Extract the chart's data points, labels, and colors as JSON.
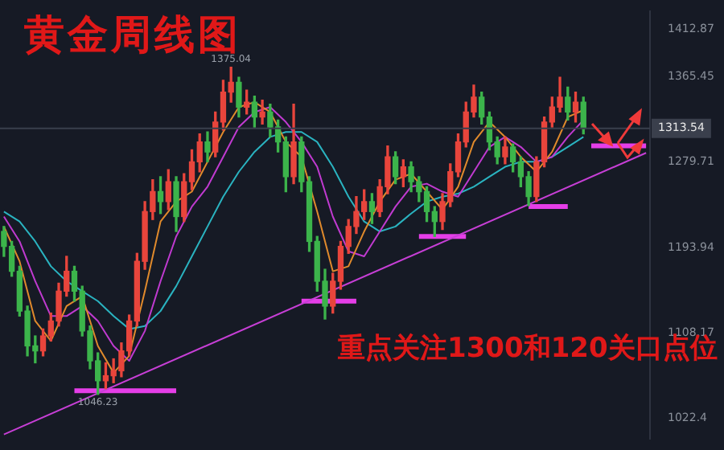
{
  "chart_data": {
    "type": "candlestick",
    "title": "黄金周线图",
    "annotations": [
      "重点关注1300和120关口点位",
      {
        "text": "1375.04",
        "y": 1375.04
      },
      {
        "text": "1046.23",
        "y": 1046.23
      }
    ],
    "categories": [
      null,
      null,
      null,
      null,
      null,
      null,
      null,
      null,
      null,
      null,
      null,
      null,
      null,
      null,
      null,
      null,
      null,
      null,
      null,
      null,
      null,
      null,
      null,
      null,
      null,
      null,
      null,
      null,
      null,
      null,
      null,
      null,
      null,
      null,
      null,
      null,
      null,
      null,
      null,
      null,
      null,
      null,
      null,
      null,
      null,
      null,
      null,
      null,
      null,
      null,
      null,
      null,
      null,
      null,
      null,
      null,
      null,
      null,
      null,
      null,
      null,
      null,
      null,
      null,
      null,
      null,
      null,
      null,
      null,
      null,
      null,
      null,
      null,
      null,
      null,
      null,
      null,
      null,
      null,
      null,
      null,
      null,
      null
    ],
    "ohlc": [
      [
        1210,
        1215,
        1185,
        1195
      ],
      [
        1195,
        1200,
        1165,
        1170
      ],
      [
        1170,
        1175,
        1125,
        1130
      ],
      [
        1130,
        1135,
        1085,
        1095
      ],
      [
        1095,
        1105,
        1078,
        1090
      ],
      [
        1090,
        1112,
        1085,
        1105
      ],
      [
        1105,
        1128,
        1100,
        1120
      ],
      [
        1120,
        1158,
        1115,
        1150
      ],
      [
        1150,
        1185,
        1145,
        1170
      ],
      [
        1170,
        1175,
        1140,
        1150
      ],
      [
        1150,
        1155,
        1105,
        1110
      ],
      [
        1110,
        1115,
        1072,
        1080
      ],
      [
        1080,
        1088,
        1046.23,
        1060
      ],
      [
        1060,
        1078,
        1052,
        1065
      ],
      [
        1065,
        1082,
        1058,
        1070
      ],
      [
        1070,
        1098,
        1064,
        1090
      ],
      [
        1090,
        1126,
        1085,
        1120
      ],
      [
        1120,
        1188,
        1115,
        1180
      ],
      [
        1180,
        1240,
        1172,
        1230
      ],
      [
        1230,
        1262,
        1222,
        1250
      ],
      [
        1250,
        1265,
        1228,
        1240
      ],
      [
        1240,
        1272,
        1232,
        1260
      ],
      [
        1260,
        1265,
        1210,
        1225
      ],
      [
        1225,
        1268,
        1220,
        1260
      ],
      [
        1260,
        1292,
        1252,
        1280
      ],
      [
        1280,
        1308,
        1270,
        1300
      ],
      [
        1300,
        1310,
        1280,
        1290
      ],
      [
        1290,
        1330,
        1285,
        1320
      ],
      [
        1320,
        1362,
        1312,
        1350
      ],
      [
        1350,
        1375.04,
        1340,
        1360
      ],
      [
        1360,
        1365,
        1325,
        1335
      ],
      [
        1335,
        1352,
        1328,
        1340
      ],
      [
        1340,
        1346,
        1315,
        1325
      ],
      [
        1325,
        1342,
        1318,
        1330
      ],
      [
        1330,
        1338,
        1305,
        1315
      ],
      [
        1315,
        1322,
        1290,
        1300
      ],
      [
        1300,
        1305,
        1250,
        1265
      ],
      [
        1265,
        1338,
        1258,
        1300
      ],
      [
        1300,
        1305,
        1250,
        1260
      ],
      [
        1260,
        1265,
        1190,
        1200
      ],
      [
        1200,
        1205,
        1150,
        1160
      ],
      [
        1160,
        1172,
        1122,
        1135
      ],
      [
        1135,
        1168,
        1128,
        1160
      ],
      [
        1160,
        1200,
        1152,
        1195
      ],
      [
        1195,
        1222,
        1188,
        1215
      ],
      [
        1215,
        1245,
        1208,
        1230
      ],
      [
        1230,
        1252,
        1222,
        1240
      ],
      [
        1240,
        1248,
        1218,
        1230
      ],
      [
        1230,
        1262,
        1225,
        1255
      ],
      [
        1255,
        1296,
        1248,
        1285
      ],
      [
        1285,
        1290,
        1258,
        1265
      ],
      [
        1265,
        1282,
        1255,
        1275
      ],
      [
        1275,
        1280,
        1250,
        1260
      ],
      [
        1260,
        1265,
        1240,
        1250
      ],
      [
        1250,
        1255,
        1220,
        1230
      ],
      [
        1230,
        1235,
        1205,
        1220
      ],
      [
        1220,
        1248,
        1212,
        1240
      ],
      [
        1240,
        1278,
        1235,
        1270
      ],
      [
        1270,
        1308,
        1265,
        1300
      ],
      [
        1300,
        1340,
        1295,
        1330
      ],
      [
        1330,
        1357,
        1325,
        1345
      ],
      [
        1345,
        1350,
        1318,
        1325
      ],
      [
        1325,
        1330,
        1292,
        1300
      ],
      [
        1300,
        1305,
        1278,
        1285
      ],
      [
        1285,
        1305,
        1278,
        1295
      ],
      [
        1295,
        1298,
        1270,
        1280
      ],
      [
        1280,
        1285,
        1255,
        1265
      ],
      [
        1265,
        1270,
        1236,
        1245
      ],
      [
        1245,
        1285,
        1240,
        1280
      ],
      [
        1280,
        1325,
        1275,
        1320
      ],
      [
        1320,
        1345,
        1315,
        1335
      ],
      [
        1335,
        1365,
        1330,
        1345
      ],
      [
        1345,
        1355,
        1322,
        1330
      ],
      [
        1330,
        1350,
        1320,
        1340
      ],
      [
        1340,
        1345,
        1308,
        1313.54
      ],
      null,
      null,
      null,
      null,
      null,
      null,
      null,
      null
    ],
    "colors": [
      "#3cb44b",
      "#3cb44b",
      "#3cb44b",
      "#3cb44b",
      "#3cb44b",
      "#e8453c",
      "#e8453c",
      "#e8453c",
      "#e8453c",
      "#3cb44b",
      "#3cb44b",
      "#3cb44b",
      "#3cb44b",
      "#e8453c",
      "#e8453c",
      "#e8453c",
      "#e8453c",
      "#e8453c",
      "#e8453c",
      "#e8453c",
      "#3cb44b",
      "#e8453c",
      "#3cb44b",
      "#e8453c",
      "#e8453c",
      "#e8453c",
      "#3cb44b",
      "#e8453c",
      "#e8453c",
      "#e8453c",
      "#3cb44b",
      "#e8453c",
      "#3cb44b",
      "#e8453c",
      "#3cb44b",
      "#3cb44b",
      "#3cb44b",
      "#e8453c",
      "#3cb44b",
      "#3cb44b",
      "#3cb44b",
      "#3cb44b",
      "#e8453c",
      "#e8453c",
      "#e8453c",
      "#e8453c",
      "#e8453c",
      "#3cb44b",
      "#e8453c",
      "#e8453c",
      "#3cb44b",
      "#e8453c",
      "#3cb44b",
      "#3cb44b",
      "#3cb44b",
      "#3cb44b",
      "#e8453c",
      "#e8453c",
      "#e8453c",
      "#e8453c",
      "#e8453c",
      "#3cb44b",
      "#3cb44b",
      "#3cb44b",
      "#e8453c",
      "#3cb44b",
      "#3cb44b",
      "#3cb44b",
      "#e8453c",
      "#e8453c",
      "#e8453c",
      "#e8453c",
      "#3cb44b",
      "#e8453c",
      "#3cb44b",
      null,
      null,
      null,
      null,
      null,
      null,
      null,
      null
    ],
    "series": [
      {
        "type": "line",
        "color": "#e08a2c",
        "values": [
          1215,
          null,
          1180,
          null,
          1120,
          null,
          1100,
          null,
          1135,
          null,
          1145,
          null,
          1095,
          null,
          1068,
          null,
          1085,
          null,
          1150,
          null,
          1220,
          null,
          1240,
          null,
          1250,
          null,
          1280,
          null,
          1310,
          null,
          1335,
          null,
          1340,
          null,
          1330,
          null,
          1300,
          null,
          1285,
          null,
          1230,
          null,
          1170,
          null,
          1175,
          null,
          1210,
          null,
          1240,
          null,
          1262,
          null,
          1268,
          null,
          1250,
          null,
          1232,
          null,
          1255,
          null,
          1300,
          null,
          1320,
          null,
          1305,
          null,
          1285,
          null,
          1270,
          null,
          1290,
          null,
          1325,
          null,
          1332,
          null,
          null,
          null,
          null,
          null,
          null,
          null,
          null
        ]
      },
      {
        "type": "line",
        "color": "#c03ad0",
        "values": [
          1225,
          null,
          1200,
          null,
          1160,
          null,
          1125,
          null,
          1125,
          null,
          1135,
          null,
          1120,
          null,
          1095,
          null,
          1080,
          null,
          1110,
          null,
          1160,
          null,
          1205,
          null,
          1235,
          null,
          1255,
          null,
          1285,
          null,
          1315,
          null,
          1330,
          null,
          1335,
          null,
          1320,
          null,
          1300,
          null,
          1275,
          null,
          1225,
          null,
          1190,
          null,
          1185,
          null,
          1210,
          null,
          1235,
          null,
          1255,
          null,
          1258,
          null,
          1250,
          null,
          1245,
          null,
          1270,
          null,
          1295,
          null,
          1305,
          null,
          1295,
          null,
          1280,
          null,
          1285,
          null,
          1305,
          null,
          1322,
          null,
          null,
          null,
          null,
          null,
          null,
          null,
          null
        ]
      },
      {
        "type": "line",
        "color": "#2ab3c0",
        "values": [
          1230,
          null,
          1220,
          null,
          1200,
          null,
          1175,
          null,
          1160,
          null,
          1150,
          null,
          1140,
          null,
          1125,
          null,
          1112,
          null,
          1115,
          null,
          1130,
          null,
          1155,
          null,
          1185,
          null,
          1215,
          null,
          1245,
          null,
          1270,
          null,
          1290,
          null,
          1305,
          null,
          1310,
          null,
          1310,
          null,
          1300,
          null,
          1275,
          null,
          1245,
          null,
          1220,
          null,
          1210,
          null,
          1215,
          null,
          1228,
          null,
          1240,
          null,
          1245,
          null,
          1248,
          null,
          1255,
          null,
          1265,
          null,
          1275,
          null,
          1280,
          null,
          1280,
          null,
          1285,
          null,
          1295,
          null,
          1305,
          null,
          null,
          null,
          null,
          null,
          null,
          null,
          null
        ]
      },
      {
        "type": "line",
        "color": "#c73fd6",
        "values": [
          1006,
          null,
          null,
          null,
          null,
          null,
          null,
          null,
          null,
          null,
          null,
          null,
          null,
          null,
          null,
          null,
          null,
          null,
          null,
          null,
          null,
          null,
          null,
          null,
          null,
          null,
          null,
          null,
          null,
          null,
          null,
          null,
          null,
          null,
          null,
          null,
          null,
          null,
          null,
          null,
          null,
          null,
          null,
          null,
          null,
          null,
          null,
          null,
          null,
          null,
          null,
          null,
          null,
          null,
          null,
          null,
          null,
          null,
          null,
          null,
          null,
          null,
          null,
          null,
          null,
          null,
          null,
          null,
          null,
          null,
          null,
          null,
          null,
          null,
          null,
          null,
          null,
          null,
          null,
          null,
          null,
          null,
          1289
        ]
      },
      {
        "type": "line",
        "color": "#e53ee8",
        "values": [
          null,
          null,
          null,
          null,
          null,
          null,
          null,
          null,
          null,
          1050,
          null,
          null,
          null,
          null,
          null,
          null,
          null,
          null,
          null,
          null,
          null,
          null,
          1050,
          null,
          null,
          null,
          null,
          null,
          null,
          null,
          null,
          null,
          null,
          null,
          null,
          null,
          null,
          null,
          null,
          null,
          null,
          null,
          null,
          null,
          null,
          null,
          null,
          null,
          null,
          null,
          null,
          null,
          null,
          null,
          null,
          null,
          null,
          null,
          null,
          null,
          null,
          null,
          null,
          null,
          null,
          null,
          null,
          null,
          null,
          null,
          null,
          null,
          null,
          null,
          null,
          null,
          null,
          null,
          null,
          null,
          null,
          null,
          null
        ]
      },
      {
        "type": "line",
        "color": "#e53ee8",
        "values": [
          null,
          null,
          null,
          null,
          null,
          null,
          null,
          null,
          null,
          null,
          null,
          null,
          null,
          null,
          null,
          null,
          null,
          null,
          null,
          null,
          null,
          null,
          null,
          null,
          null,
          null,
          null,
          null,
          null,
          null,
          null,
          null,
          null,
          null,
          null,
          null,
          null,
          null,
          1140,
          null,
          null,
          null,
          null,
          null,
          null,
          1140,
          null,
          null,
          null,
          null,
          null,
          null,
          null,
          null,
          null,
          null,
          null,
          null,
          null,
          null,
          null,
          null,
          null,
          null,
          null,
          null,
          null,
          null,
          null,
          null,
          null,
          null,
          null,
          null,
          null,
          null,
          null,
          null,
          null,
          null,
          null,
          null,
          null
        ]
      },
      {
        "type": "line",
        "color": "#e53ee8",
        "values": [
          null,
          null,
          null,
          null,
          null,
          null,
          null,
          null,
          null,
          null,
          null,
          null,
          null,
          null,
          null,
          null,
          null,
          null,
          null,
          null,
          null,
          null,
          null,
          null,
          null,
          null,
          null,
          null,
          null,
          null,
          null,
          null,
          null,
          null,
          null,
          null,
          null,
          null,
          null,
          null,
          null,
          null,
          null,
          null,
          null,
          null,
          null,
          null,
          null,
          null,
          null,
          null,
          null,
          1205,
          null,
          null,
          null,
          null,
          null,
          1205,
          null,
          null,
          null,
          null,
          null,
          null,
          null,
          null,
          null,
          null,
          null,
          null,
          null,
          null,
          null,
          null,
          null,
          null,
          null,
          null,
          null,
          null,
          null
        ]
      },
      {
        "type": "line",
        "color": "#e53ee8",
        "values": [
          null,
          null,
          null,
          null,
          null,
          null,
          null,
          null,
          null,
          null,
          null,
          null,
          null,
          null,
          null,
          null,
          null,
          null,
          null,
          null,
          null,
          null,
          null,
          null,
          null,
          null,
          null,
          null,
          null,
          null,
          null,
          null,
          null,
          null,
          null,
          null,
          null,
          null,
          null,
          null,
          null,
          null,
          null,
          null,
          null,
          null,
          null,
          null,
          null,
          null,
          null,
          null,
          null,
          null,
          null,
          null,
          null,
          null,
          null,
          null,
          null,
          null,
          null,
          null,
          null,
          null,
          null,
          1235,
          null,
          null,
          null,
          null,
          1235,
          null,
          null,
          null,
          null,
          null,
          null,
          null,
          null,
          null,
          null
        ]
      },
      {
        "type": "line",
        "color": "#e53ee8",
        "values": [
          null,
          null,
          null,
          null,
          null,
          null,
          null,
          null,
          null,
          null,
          null,
          null,
          null,
          null,
          null,
          null,
          null,
          null,
          null,
          null,
          null,
          null,
          null,
          null,
          null,
          null,
          null,
          null,
          null,
          null,
          null,
          null,
          null,
          null,
          null,
          null,
          null,
          null,
          null,
          null,
          null,
          null,
          null,
          null,
          null,
          null,
          null,
          null,
          null,
          null,
          null,
          null,
          null,
          null,
          null,
          null,
          null,
          null,
          null,
          null,
          null,
          null,
          null,
          null,
          null,
          null,
          null,
          null,
          null,
          null,
          null,
          null,
          null,
          null,
          null,
          1296,
          null,
          null,
          null,
          null,
          null,
          null,
          1296
        ]
      }
    ],
    "ylim": [
      1002,
      1431
    ],
    "yticks": [
      1022.4,
      1108.17,
      1193.94,
      1279.71,
      1365.45,
      1412.87
    ],
    "ref_lines": [
      {
        "axis": "y",
        "value": 1313.54,
        "label": "1313.54",
        "color": "#3a3f4c"
      }
    ],
    "tick_labels": "y",
    "legend": false,
    "grid": false
  }
}
